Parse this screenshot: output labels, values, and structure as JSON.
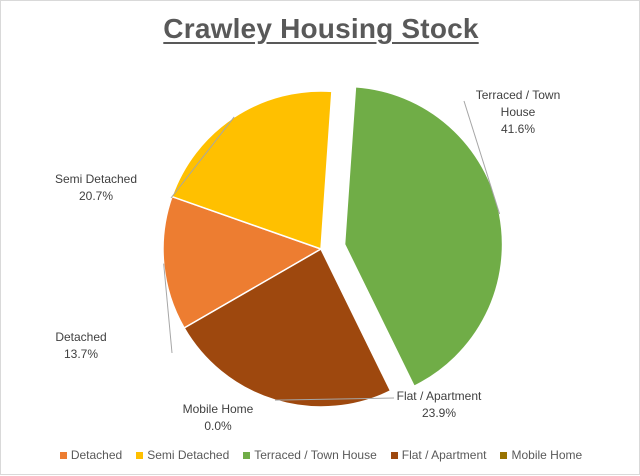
{
  "chart_data": {
    "type": "pie",
    "title": "Crawley Housing Stock",
    "slices": [
      {
        "label": "Detached",
        "value": 13.7,
        "value_label": "13.7%",
        "color": "#ED7D31"
      },
      {
        "label": "Semi Detached",
        "value": 20.7,
        "value_label": "20.7%",
        "color": "#FFC000"
      },
      {
        "label": "Terraced / Town House",
        "label_lines": [
          "Terraced / Town",
          "House"
        ],
        "value": 41.6,
        "value_label": "41.6%",
        "color": "#70AD47",
        "exploded": true
      },
      {
        "label": "Flat / Apartment",
        "value": 23.9,
        "value_label": "23.9%",
        "color": "#9E480E"
      },
      {
        "label": "Mobile Home",
        "value": 0.0,
        "value_label": "0.0%",
        "color": "#997300"
      }
    ],
    "legend_position": "bottom"
  }
}
